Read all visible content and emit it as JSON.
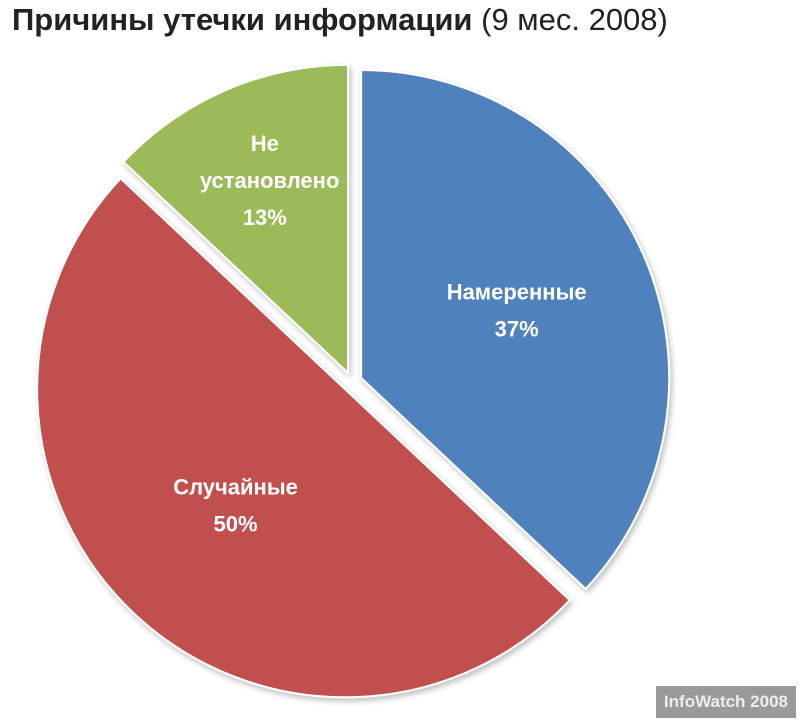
{
  "chart_data": {
    "type": "pie",
    "title": "Причины утечки информации",
    "subtitle": "(9 мес. 2008)",
    "categories": [
      "Намеренные",
      "Случайные",
      "Не установлено"
    ],
    "values": [
      37,
      50,
      13
    ],
    "value_labels": [
      "37%",
      "50%",
      "13%"
    ],
    "colors": [
      "#4f81bd",
      "#c0504d",
      "#9bbb59"
    ],
    "annotation": "InfoWatch 2008"
  }
}
